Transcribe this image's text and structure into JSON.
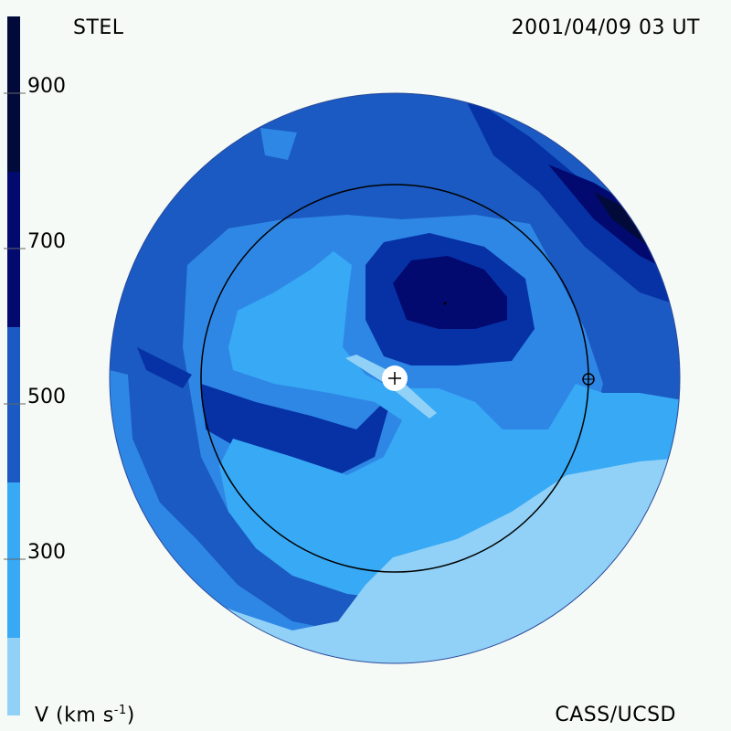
{
  "header": {
    "instrument": "STEL",
    "timestamp": "2001/04/09 03 UT"
  },
  "footer": {
    "credit": "CASS/UCSD",
    "unit_label": "V (km s",
    "unit_exponent": "-1",
    "unit_close": ")"
  },
  "colorbar": {
    "ticks": [
      "900",
      "700",
      "500",
      "300"
    ],
    "bands": [
      "#f5faf7",
      "#020a3a",
      "#020a70",
      "#0632a6",
      "#1a5ac2",
      "#2f87e5",
      "#37a9f5",
      "#91d1f7"
    ]
  },
  "map": {
    "velocity_colors": {
      "v200": "#91d1f7",
      "v300": "#37a9f5",
      "v400": "#2f87e5",
      "v500": "#1a5ac2",
      "v600": "#0632a6",
      "v700": "#020a70",
      "v800": "#020a3a"
    }
  }
}
